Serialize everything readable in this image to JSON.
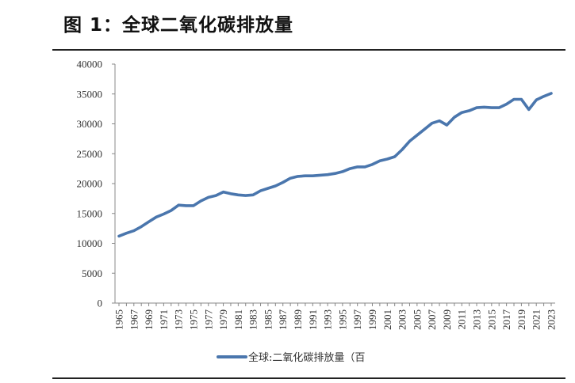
{
  "page_title": "图 1：全球二氧化碳排放量",
  "chart_data": {
    "type": "line",
    "title": "",
    "xlabel": "",
    "ylabel": "",
    "ylim": [
      0,
      40000
    ],
    "yticks": [
      0,
      5000,
      10000,
      15000,
      20000,
      25000,
      30000,
      35000,
      40000
    ],
    "grid": false,
    "legend_position": "bottom",
    "series_color": "#4a76ad",
    "x": [
      1965,
      1966,
      1967,
      1968,
      1969,
      1970,
      1971,
      1972,
      1973,
      1974,
      1975,
      1976,
      1977,
      1978,
      1979,
      1980,
      1981,
      1982,
      1983,
      1984,
      1985,
      1986,
      1987,
      1988,
      1989,
      1990,
      1991,
      1992,
      1993,
      1994,
      1995,
      1996,
      1997,
      1998,
      1999,
      2000,
      2001,
      2002,
      2003,
      2004,
      2005,
      2006,
      2007,
      2008,
      2009,
      2010,
      2011,
      2012,
      2013,
      2014,
      2015,
      2016,
      2017,
      2018,
      2019,
      2020,
      2021,
      2022,
      2023
    ],
    "x_tick_labels": [
      "1965",
      "1967",
      "1969",
      "1971",
      "1973",
      "1975",
      "1977",
      "1979",
      "1981",
      "1983",
      "1985",
      "1987",
      "1989",
      "1991",
      "1993",
      "1995",
      "1997",
      "1999",
      "2001",
      "2003",
      "2005",
      "2007",
      "2009",
      "2011",
      "2013",
      "2015",
      "2017",
      "2019",
      "2021",
      "2023"
    ],
    "series": [
      {
        "name": "全球:二氧化碳排放量（百",
        "values": [
          11200,
          11700,
          12100,
          12800,
          13600,
          14400,
          14900,
          15500,
          16400,
          16300,
          16300,
          17100,
          17700,
          18000,
          18600,
          18300,
          18100,
          18000,
          18100,
          18800,
          19200,
          19600,
          20200,
          20900,
          21200,
          21300,
          21300,
          21400,
          21500,
          21700,
          22000,
          22500,
          22800,
          22800,
          23200,
          23800,
          24100,
          24500,
          25700,
          27100,
          28100,
          29100,
          30100,
          30500,
          29800,
          31100,
          31900,
          32200,
          32700,
          32800,
          32700,
          32700,
          33300,
          34100,
          34100,
          32400,
          34000,
          34600,
          35100
        ]
      }
    ]
  }
}
